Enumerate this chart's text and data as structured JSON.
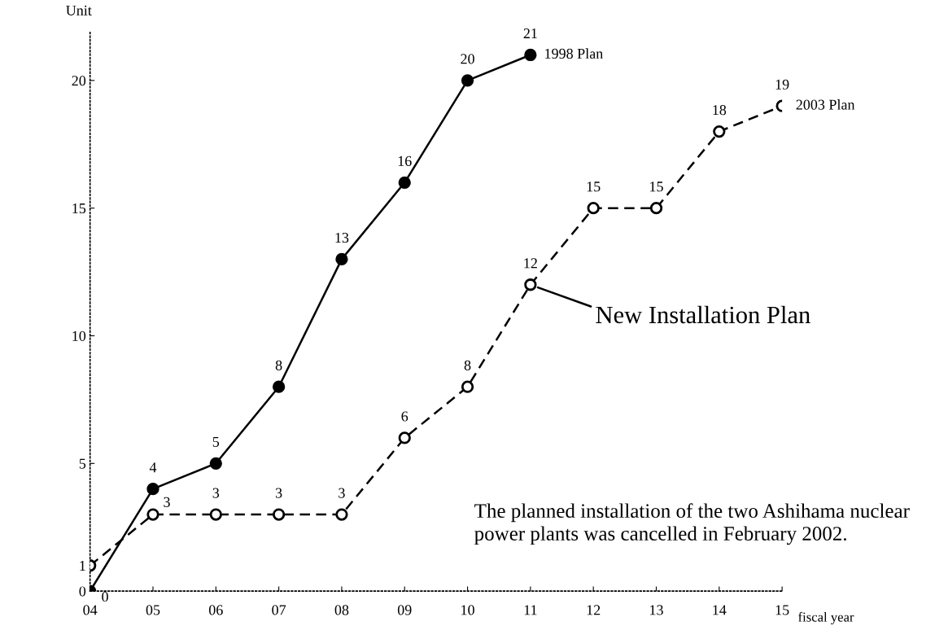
{
  "chart_data": {
    "type": "line",
    "ylabel": "Unit",
    "xlabel": "fiscal year",
    "categories": [
      "04",
      "05",
      "06",
      "07",
      "08",
      "09",
      "10",
      "11",
      "12",
      "13",
      "14",
      "15"
    ],
    "series": [
      {
        "name": "1998 Plan",
        "color": "#000000",
        "line_style": "solid",
        "values": [
          0,
          4,
          5,
          8,
          13,
          16,
          20,
          21,
          null,
          null,
          null,
          null
        ],
        "value_labels": [
          "0",
          "4",
          "5",
          "8",
          "13",
          "16",
          "20",
          "21",
          null,
          null,
          null,
          null
        ]
      },
      {
        "name": "2003 Plan",
        "color": "#000000",
        "line_style": "dashed",
        "values": [
          1,
          3,
          3,
          3,
          3,
          6,
          8,
          12,
          15,
          15,
          18,
          19
        ],
        "value_labels": [
          null,
          "3",
          "3",
          "3",
          "3",
          "6",
          "8",
          "12",
          "15",
          "15",
          "18",
          "19"
        ]
      }
    ],
    "ylim": [
      0,
      21.9
    ],
    "yticks": [
      0,
      1,
      5,
      10,
      15,
      20
    ],
    "marker": "circle",
    "grid": false,
    "legend": false,
    "annotations": [
      {
        "text": "New Installation Plan",
        "x": "11",
        "y": 12
      },
      "The planned installation of the two Ashihama nuclear power plants was cancelled in February 2002."
    ]
  }
}
